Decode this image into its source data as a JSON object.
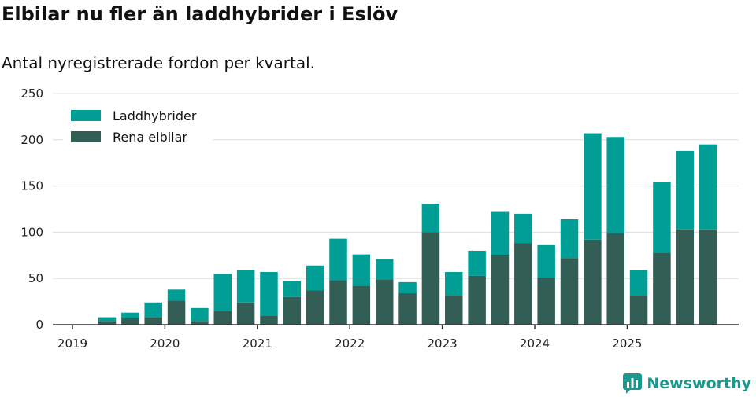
{
  "title": "Elbilar nu fler än laddhybrider i Eslöv",
  "subtitle": "Antal nyregistrerade fordon per kvartal.",
  "brand": {
    "name": "Newsworthy",
    "icon": "newsworthy-logo-icon"
  },
  "colors": {
    "series1": "#009e94",
    "series2": "#325e55",
    "grid": "#dddddd",
    "axis": "#333333",
    "brand": "#1a9a8c"
  },
  "chart_data": {
    "type": "bar",
    "stacked": true,
    "ylim": [
      0,
      250
    ],
    "yticks": [
      0,
      50,
      100,
      150,
      200,
      250
    ],
    "xticks": [
      "2019",
      "2020",
      "2021",
      "2022",
      "2023",
      "2024",
      "2025"
    ],
    "legend_position": "top-left",
    "categories": [
      "2019 Q2",
      "2019 Q3",
      "2019 Q4",
      "2020 Q1",
      "2020 Q2",
      "2020 Q3",
      "2020 Q4",
      "2021 Q1",
      "2021 Q2",
      "2021 Q3",
      "2021 Q4",
      "2022 Q1",
      "2022 Q2",
      "2022 Q3",
      "2022 Q4",
      "2023 Q1",
      "2023 Q2",
      "2023 Q3",
      "2023 Q4",
      "2024 Q1",
      "2024 Q2",
      "2024 Q3",
      "2024 Q4",
      "2025 Q1",
      "2025 Q2",
      "2025 Q3",
      "2025 Q4"
    ],
    "series": [
      {
        "name": "Laddhybrider",
        "values": [
          4,
          6,
          16,
          12,
          14,
          40,
          35,
          47,
          17,
          27,
          45,
          34,
          22,
          12,
          31,
          25,
          27,
          47,
          32,
          35,
          42,
          115,
          104,
          27,
          76,
          85,
          92
        ]
      },
      {
        "name": "Rena elbilar",
        "values": [
          4,
          7,
          8,
          26,
          4,
          15,
          24,
          10,
          30,
          37,
          48,
          42,
          49,
          34,
          100,
          32,
          53,
          75,
          88,
          51,
          72,
          92,
          99,
          32,
          78,
          103,
          103
        ]
      }
    ]
  }
}
